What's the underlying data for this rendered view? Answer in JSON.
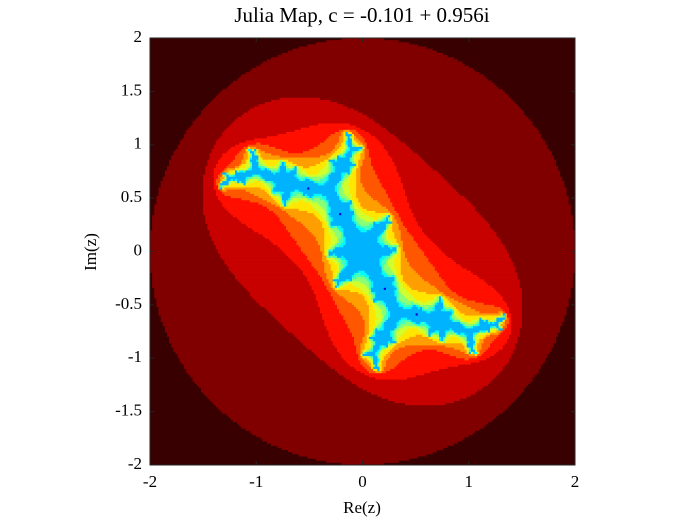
{
  "chart_data": {
    "type": "julia",
    "title": "Julia Map, c = -0.101 + 0.956i",
    "c": {
      "re": -0.101,
      "im": 0.956
    },
    "x_label": "Re(z)",
    "y_label": "Im(z)",
    "xlim": [
      -2,
      2
    ],
    "ylim": [
      -2,
      2
    ],
    "xticks": [
      -2,
      -1,
      0,
      1,
      2
    ],
    "yticks": [
      -2,
      -1.5,
      -1,
      -0.5,
      0,
      0.5,
      1,
      1.5,
      2
    ]
  }
}
